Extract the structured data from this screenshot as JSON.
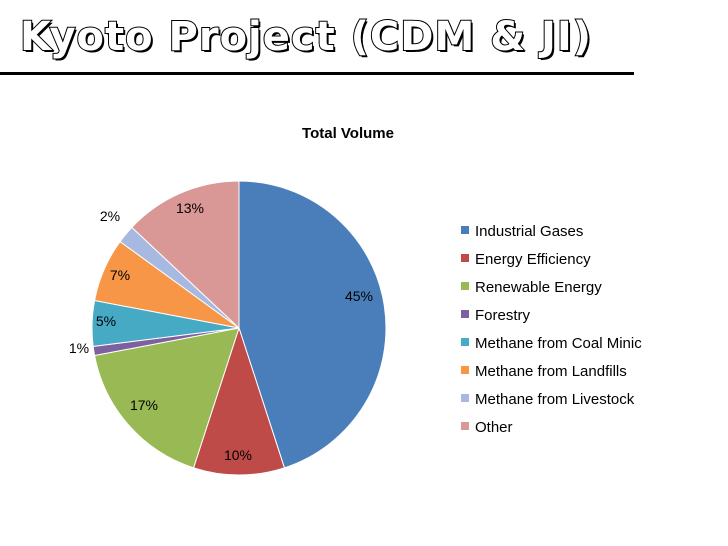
{
  "slide": {
    "title": "Kyoto Project (CDM & JI)"
  },
  "chart_data": {
    "type": "pie",
    "title": "Total Volume",
    "categories": [
      "Industrial Gases",
      "Energy Efficiency",
      "Renewable Energy",
      "Forestry",
      "Methane from Coal Minic",
      "Methane from Landfills",
      "Methane from Livestock",
      "Other"
    ],
    "values": [
      45,
      10,
      17,
      1,
      5,
      7,
      2,
      13
    ],
    "labels": [
      "45%",
      "10%",
      "17%",
      "1%",
      "5%",
      "7%",
      "2%",
      "13%"
    ],
    "colors": [
      "#4a7ebb",
      "#be4b48",
      "#98b954",
      "#7d60a0",
      "#46aac5",
      "#f79646",
      "#a7b9e0",
      "#d99795"
    ],
    "legend_position": "right"
  }
}
